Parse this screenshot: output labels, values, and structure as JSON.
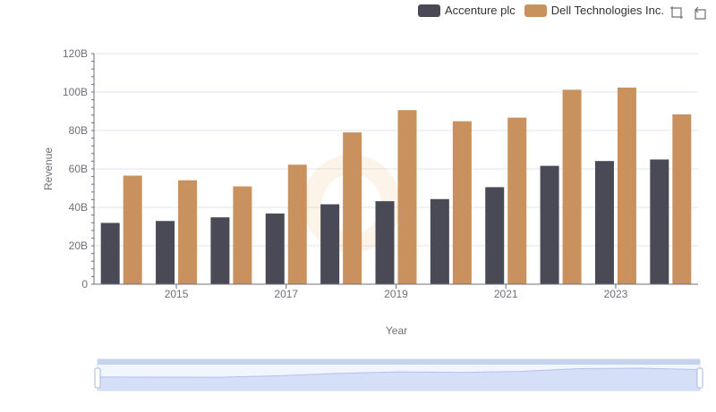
{
  "legend": {
    "series1_label": "Accenture plc",
    "series2_label": "Dell Technologies Inc."
  },
  "toolbox": {
    "icons": [
      "zoom-select-icon",
      "zoom-reset-icon"
    ]
  },
  "colors": {
    "accenture": "#4a4a56",
    "dell": "#c8915e",
    "grid": "#e0e6f1",
    "slider_fill": "#d6e2fb",
    "slider_border": "#a8b7d6"
  },
  "chart_data": {
    "type": "bar",
    "x": [
      2014,
      2015,
      2016,
      2017,
      2018,
      2019,
      2020,
      2021,
      2022,
      2023,
      2024
    ],
    "x_tick_labels": [
      "2015",
      "2017",
      "2019",
      "2021",
      "2023"
    ],
    "series": [
      {
        "name": "Accenture plc",
        "values": [
          31.9,
          32.9,
          34.8,
          36.8,
          41.6,
          43.2,
          44.3,
          50.5,
          61.6,
          64.1,
          64.9
        ]
      },
      {
        "name": "Dell Technologies Inc.",
        "values": [
          56.5,
          54.1,
          50.9,
          62.2,
          79.0,
          90.6,
          84.8,
          86.7,
          101.2,
          102.3,
          88.4
        ]
      }
    ],
    "xlabel": "Year",
    "ylabel": "Revenue",
    "ylim": [
      0,
      120
    ],
    "y_ticks": [
      "0",
      "20B",
      "40B",
      "60B",
      "80B",
      "100B",
      "120B"
    ],
    "grid": true,
    "legend_position": "top-right",
    "zoom_slider": true
  }
}
